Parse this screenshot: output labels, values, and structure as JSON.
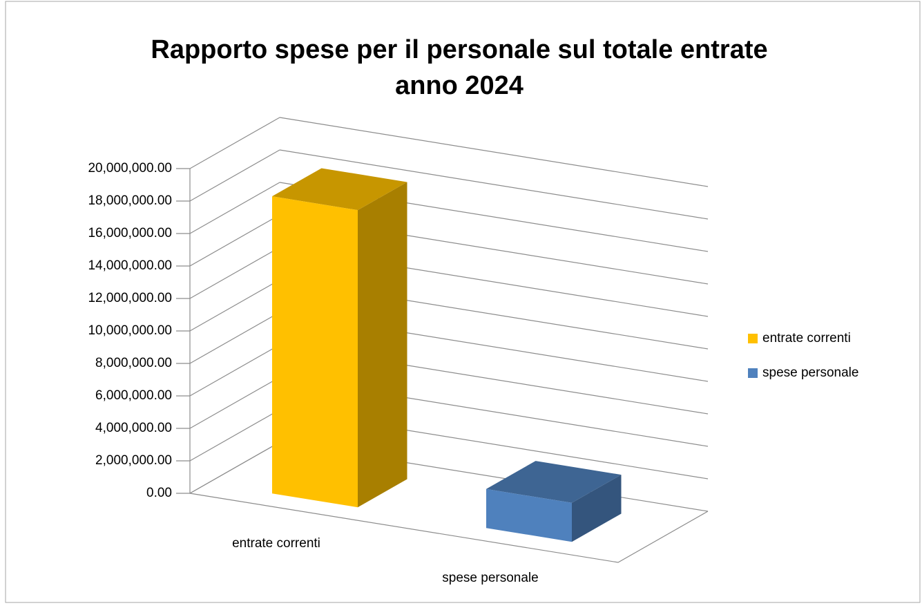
{
  "chart_data": {
    "type": "bar3d",
    "title": [
      "Rapporto spese per il personale sul totale entrate",
      "anno 2024"
    ],
    "categories": [
      "entrate correnti",
      "spese personale"
    ],
    "values": [
      18300000,
      2400000
    ],
    "colors": [
      "#ffc000",
      "#4f81bd"
    ],
    "ylim": [
      0,
      20000000
    ],
    "yticks": [
      {
        "value": 0,
        "label": "0.00"
      },
      {
        "value": 2000000,
        "label": "2,000,000.00"
      },
      {
        "value": 4000000,
        "label": "4,000,000.00"
      },
      {
        "value": 6000000,
        "label": "6,000,000.00"
      },
      {
        "value": 8000000,
        "label": "8,000,000.00"
      },
      {
        "value": 10000000,
        "label": "10,000,000.00"
      },
      {
        "value": 12000000,
        "label": "12,000,000.00"
      },
      {
        "value": 14000000,
        "label": "14,000,000.00"
      },
      {
        "value": 16000000,
        "label": "16,000,000.00"
      },
      {
        "value": 18000000,
        "label": "18,000,000.00"
      },
      {
        "value": 20000000,
        "label": "20,000,000.00"
      }
    ],
    "grid": true,
    "legend": "right"
  }
}
